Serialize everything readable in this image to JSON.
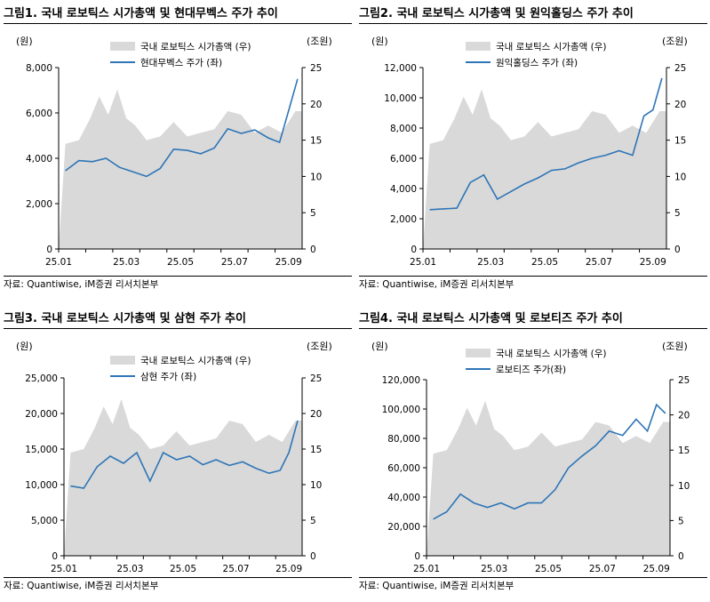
{
  "panels": [
    {
      "title": "그림1.  국내 로보틱스 시가총액 및 현대무벡스 주가 추이",
      "source": "자료: Quantiwise, iM증권 리서치본부",
      "unit_left": "(원)",
      "unit_right": "(조원)",
      "legend_area": "국내 로보틱스 시가총액 (우)",
      "legend_line": "현대무벡스 주가 (좌)",
      "left_ticks": [
        "0",
        "2,000",
        "4,000",
        "6,000",
        "8,000"
      ],
      "right_ticks": [
        "0",
        "5",
        "10",
        "15",
        "20",
        "25"
      ],
      "x_ticks": [
        "25.01",
        "25.03",
        "25.05",
        "25.07",
        "25.09"
      ]
    },
    {
      "title": "그림2.  국내 로보틱스 시가총액 및 원익홀딩스 주가 추이",
      "source": "자료: Quantiwise, iM증권 리서치본부",
      "unit_left": "(원)",
      "unit_right": "(조원)",
      "legend_area": "국내 로보틱스 시가총액 (우)",
      "legend_line": "원익홀딩스 주가 (좌)",
      "left_ticks": [
        "0",
        "2,000",
        "4,000",
        "6,000",
        "8,000",
        "10,000",
        "12,000"
      ],
      "right_ticks": [
        "0",
        "5",
        "10",
        "15",
        "20",
        "25"
      ],
      "x_ticks": [
        "25.01",
        "25.03",
        "25.05",
        "25.07",
        "25.09"
      ]
    },
    {
      "title": "그림3.  국내 로보틱스 시가총액 및 삼현 주가 추이",
      "source": "자료: Quantiwise, iM증권 리서치본부",
      "unit_left": "(원)",
      "unit_right": "(조원)",
      "legend_area": "국내 로보틱스 시가총액 (우)",
      "legend_line": "삼현 주가 (좌)",
      "left_ticks": [
        "0",
        "5,000",
        "10,000",
        "15,000",
        "20,000",
        "25,000"
      ],
      "right_ticks": [
        "0",
        "5",
        "10",
        "15",
        "20",
        "25"
      ],
      "x_ticks": [
        "25.01",
        "25.03",
        "25.05",
        "25.07",
        "25.09"
      ]
    },
    {
      "title": "그림4.  국내 로보틱스 시가총액 및 로보티즈 주가 추이",
      "source": "자료: Quantiwise, iM증권 리서치본부",
      "unit_left": "(원)",
      "unit_right": "(조원)",
      "legend_area": "국내 로보틱스 시가총액 (우)",
      "legend_line": "로보티즈 주가(좌)",
      "left_ticks": [
        "0",
        "20,000",
        "40,000",
        "60,000",
        "80,000",
        "100,000",
        "120,000"
      ],
      "right_ticks": [
        "0",
        "5",
        "10",
        "15",
        "20",
        "25"
      ],
      "x_ticks": [
        "25.01",
        "25.03",
        "25.05",
        "25.07",
        "25.09"
      ]
    }
  ],
  "chart_data": [
    {
      "type": "line",
      "series": [
        {
          "name": "국내 로보틱스 시가총액 (우)",
          "type": "area",
          "axis": "right",
          "color": "#d9d9d9",
          "x": [
            "25.01",
            "25.01",
            "25.02",
            "25.02",
            "25.02",
            "25.03",
            "25.03",
            "25.03",
            "25.04",
            "25.04",
            "25.05",
            "25.05",
            "25.06",
            "25.06",
            "25.07",
            "25.07",
            "25.08",
            "25.08",
            "25.09",
            "25.09"
          ],
          "values": [
            14.5,
            15.0,
            18.0,
            21.0,
            18.5,
            22.0,
            18.0,
            17.0,
            15.0,
            15.5,
            17.5,
            15.5,
            16.0,
            16.5,
            19.0,
            18.5,
            16.0,
            17.0,
            16.0,
            19.0
          ]
        },
        {
          "name": "현대무벡스 주가 (좌)",
          "type": "line",
          "axis": "left",
          "color": "#2e75b6",
          "x": [
            "25.01",
            "25.01",
            "25.02",
            "25.02",
            "25.03",
            "25.03",
            "25.04",
            "25.04",
            "25.05",
            "25.05",
            "25.06",
            "25.06",
            "25.07",
            "25.07",
            "25.08",
            "25.08",
            "25.09",
            "25.09",
            "25.09"
          ],
          "values": [
            3450,
            3900,
            3850,
            4000,
            3600,
            3400,
            3200,
            3550,
            4400,
            4350,
            4200,
            4450,
            5300,
            5100,
            5250,
            4900,
            4700,
            6100,
            7500
          ]
        }
      ],
      "ylim_left": [
        0,
        8000
      ],
      "ylim_right": [
        0,
        25
      ]
    },
    {
      "type": "line",
      "series": [
        {
          "name": "국내 로보틱스 시가총액 (우)",
          "type": "area",
          "axis": "right",
          "color": "#d9d9d9",
          "x": [
            "25.01",
            "25.01",
            "25.02",
            "25.02",
            "25.02",
            "25.03",
            "25.03",
            "25.03",
            "25.04",
            "25.04",
            "25.05",
            "25.05",
            "25.06",
            "25.06",
            "25.07",
            "25.07",
            "25.08",
            "25.08",
            "25.09",
            "25.09"
          ],
          "values": [
            14.5,
            15.0,
            18.0,
            21.0,
            18.5,
            22.0,
            18.0,
            17.0,
            15.0,
            15.5,
            17.5,
            15.5,
            16.0,
            16.5,
            19.0,
            18.5,
            16.0,
            17.0,
            16.0,
            19.0
          ]
        },
        {
          "name": "원익홀딩스 주가 (좌)",
          "type": "line",
          "axis": "left",
          "color": "#2e75b6",
          "x": [
            "25.01",
            "25.01",
            "25.02",
            "25.02",
            "25.03",
            "25.03",
            "25.04",
            "25.04",
            "25.05",
            "25.05",
            "25.06",
            "25.06",
            "25.07",
            "25.07",
            "25.08",
            "25.08",
            "25.09",
            "25.09",
            "25.09"
          ],
          "values": [
            2600,
            2650,
            2700,
            4400,
            4900,
            3300,
            3800,
            4300,
            4700,
            5200,
            5300,
            5700,
            6000,
            6200,
            6500,
            6200,
            8800,
            9200,
            11300
          ]
        }
      ],
      "ylim_left": [
        0,
        12000
      ],
      "ylim_right": [
        0,
        25
      ]
    },
    {
      "type": "line",
      "series": [
        {
          "name": "국내 로보틱스 시가총액 (우)",
          "type": "area",
          "axis": "right",
          "color": "#d9d9d9",
          "x": [
            "25.01",
            "25.01",
            "25.02",
            "25.02",
            "25.02",
            "25.03",
            "25.03",
            "25.03",
            "25.04",
            "25.04",
            "25.05",
            "25.05",
            "25.06",
            "25.06",
            "25.07",
            "25.07",
            "25.08",
            "25.08",
            "25.09",
            "25.09"
          ],
          "values": [
            14.5,
            15.0,
            18.0,
            21.0,
            18.5,
            22.0,
            18.0,
            17.0,
            15.0,
            15.5,
            17.5,
            15.5,
            16.0,
            16.5,
            19.0,
            18.5,
            16.0,
            17.0,
            16.0,
            19.0
          ]
        },
        {
          "name": "삼현 주가 (좌)",
          "type": "line",
          "axis": "left",
          "color": "#2e75b6",
          "x": [
            "25.01",
            "25.01",
            "25.02",
            "25.02",
            "25.03",
            "25.03",
            "25.04",
            "25.04",
            "25.05",
            "25.05",
            "25.06",
            "25.06",
            "25.07",
            "25.07",
            "25.08",
            "25.08",
            "25.09",
            "25.09",
            "25.09"
          ],
          "values": [
            9800,
            9500,
            12500,
            14000,
            13000,
            14500,
            10500,
            14500,
            13500,
            14000,
            12800,
            13500,
            12700,
            13200,
            12300,
            11600,
            12000,
            14500,
            19000
          ]
        }
      ],
      "ylim_left": [
        0,
        25000
      ],
      "ylim_right": [
        0,
        25
      ]
    },
    {
      "type": "line",
      "series": [
        {
          "name": "국내 로보틱스 시가총액 (우)",
          "type": "area",
          "axis": "right",
          "color": "#d9d9d9",
          "x": [
            "25.01",
            "25.01",
            "25.02",
            "25.02",
            "25.02",
            "25.03",
            "25.03",
            "25.03",
            "25.04",
            "25.04",
            "25.05",
            "25.05",
            "25.06",
            "25.06",
            "25.07",
            "25.07",
            "25.08",
            "25.08",
            "25.09",
            "25.09"
          ],
          "values": [
            14.5,
            15.0,
            18.0,
            21.0,
            18.5,
            22.0,
            18.0,
            17.0,
            15.0,
            15.5,
            17.5,
            15.5,
            16.0,
            16.5,
            19.0,
            18.5,
            16.0,
            17.0,
            16.0,
            19.0
          ]
        },
        {
          "name": "로보티즈 주가(좌)",
          "type": "line",
          "axis": "left",
          "color": "#2e75b6",
          "x": [
            "25.01",
            "25.01",
            "25.02",
            "25.02",
            "25.03",
            "25.03",
            "25.04",
            "25.04",
            "25.05",
            "25.05",
            "25.06",
            "25.06",
            "25.07",
            "25.07",
            "25.08",
            "25.08",
            "25.09",
            "25.09",
            "25.09"
          ],
          "values": [
            25000,
            30000,
            42000,
            36000,
            33000,
            36000,
            32000,
            36000,
            36000,
            45000,
            60000,
            68000,
            75000,
            85000,
            82000,
            93000,
            85000,
            103000,
            97000
          ]
        }
      ],
      "ylim_left": [
        0,
        120000
      ],
      "ylim_right": [
        0,
        25
      ]
    }
  ]
}
